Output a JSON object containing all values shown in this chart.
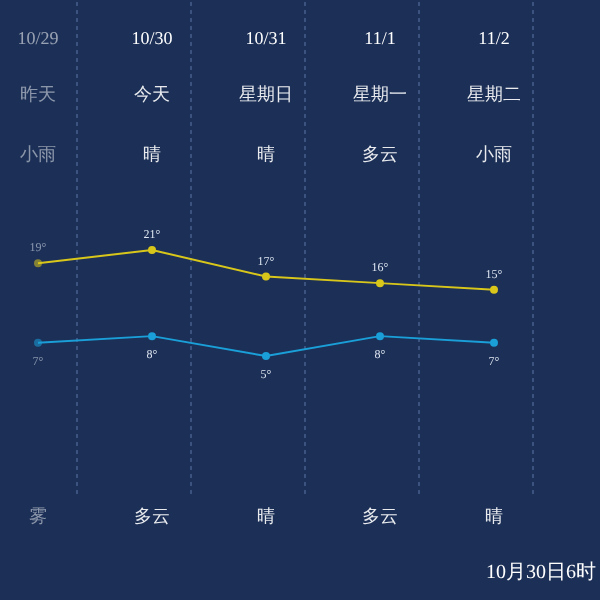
{
  "chart_data": {
    "type": "line",
    "categories": [
      "10/29",
      "10/30",
      "10/31",
      "11/1",
      "11/2"
    ],
    "series": [
      {
        "color": "#d8c61a",
        "values": [
          19,
          21,
          17,
          16,
          15
        ],
        "value_labels": [
          "19°",
          "21°",
          "17°",
          "16°",
          "15°"
        ]
      },
      {
        "color": "#1a9fd8",
        "values": [
          7,
          8,
          5,
          8,
          7
        ],
        "value_labels": [
          "7°",
          "8°",
          "5°",
          "8°",
          "7°"
        ]
      }
    ],
    "marker": "circle",
    "annotations": [
      "昨天",
      "今天",
      "星期日",
      "星期一",
      "星期二",
      "小雨",
      "晴",
      "晴",
      "多云",
      "小雨",
      "雾",
      "多云",
      "晴",
      "多云",
      "晴",
      "10月30日6时"
    ]
  }
}
